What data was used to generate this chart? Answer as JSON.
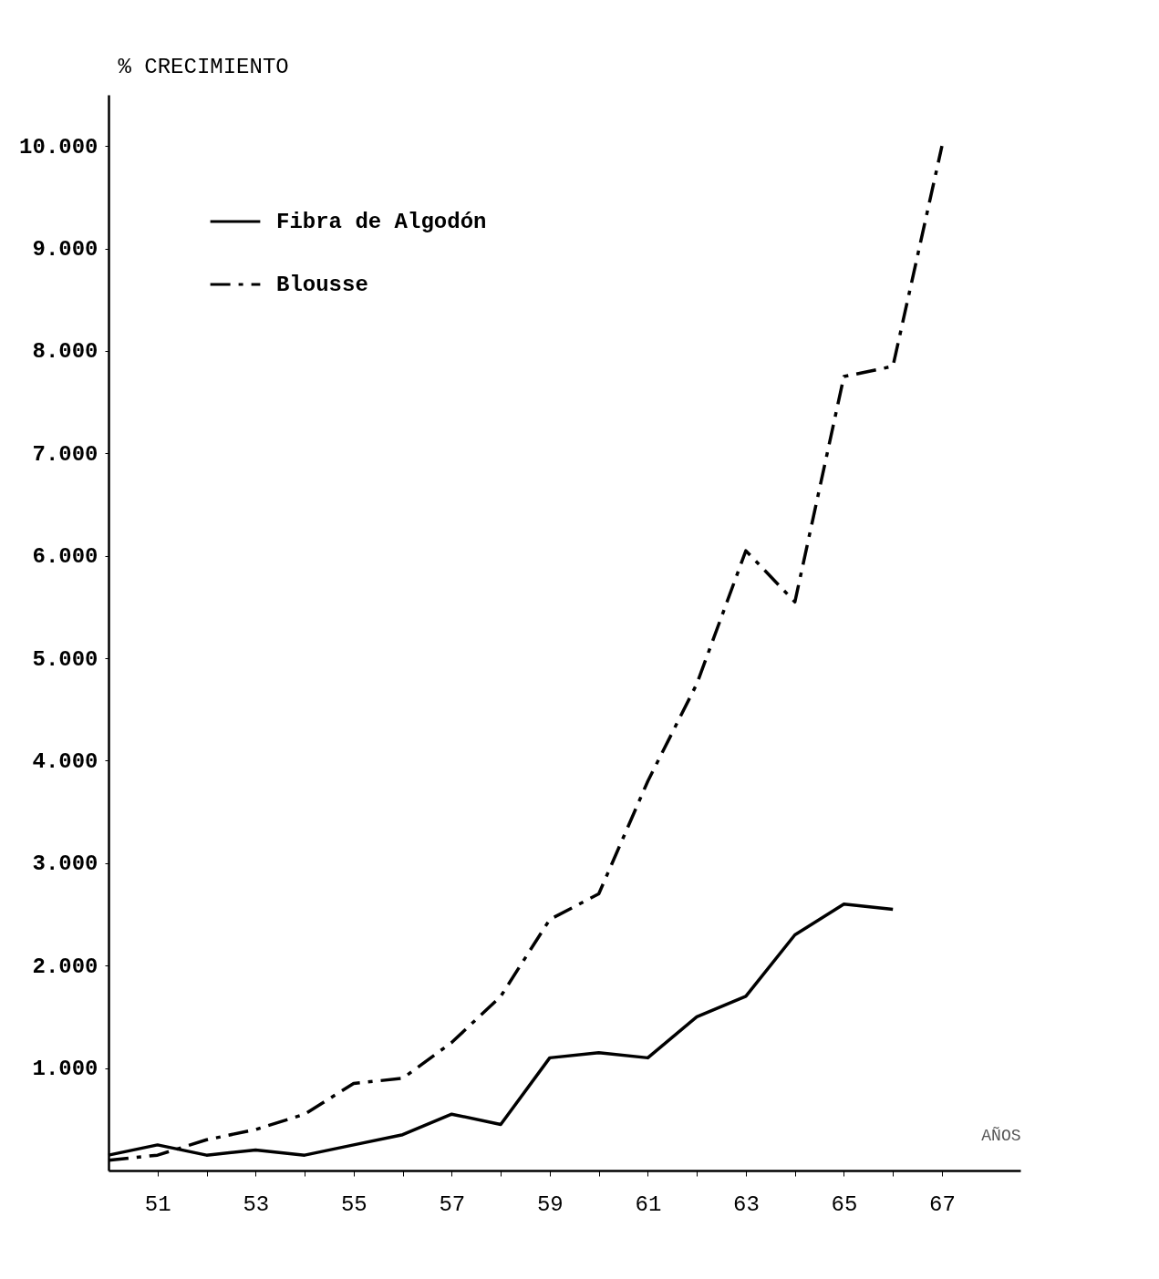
{
  "chart_data": {
    "type": "line",
    "ylabel": "% CRECIMIENTO",
    "xlabel": "AÑOS",
    "x": [
      1950,
      1951,
      1952,
      1953,
      1954,
      1955,
      1956,
      1957,
      1958,
      1959,
      1960,
      1961,
      1962,
      1963,
      1964,
      1965,
      1966,
      1967
    ],
    "series": [
      {
        "name": "Fibra de Algodón",
        "color": "#000000",
        "line_style": "solid",
        "values": [
          150,
          250,
          150,
          200,
          150,
          250,
          350,
          550,
          450,
          1100,
          1150,
          1100,
          1500,
          1700,
          2300,
          2600,
          2550,
          null
        ]
      },
      {
        "name": "Blousse",
        "color": "#000000",
        "line_style": "dashed",
        "values": [
          100,
          150,
          300,
          400,
          550,
          850,
          900,
          1250,
          1700,
          2450,
          2700,
          3800,
          4750,
          6050,
          5550,
          7750,
          7850,
          10000
        ]
      }
    ],
    "xlim": [
      1950,
      1968.6
    ],
    "xticks": [
      {
        "value": 1951,
        "label": "51"
      },
      {
        "value": 1952,
        "label": null
      },
      {
        "value": 1953,
        "label": "53"
      },
      {
        "value": 1954,
        "label": null
      },
      {
        "value": 1955,
        "label": "55"
      },
      {
        "value": 1956,
        "label": null
      },
      {
        "value": 1957,
        "label": "57"
      },
      {
        "value": 1958,
        "label": null
      },
      {
        "value": 1959,
        "label": "59"
      },
      {
        "value": 1960,
        "label": null
      },
      {
        "value": 1961,
        "label": "61"
      },
      {
        "value": 1962,
        "label": null
      },
      {
        "value": 1963,
        "label": "63"
      },
      {
        "value": 1964,
        "label": null
      },
      {
        "value": 1965,
        "label": "65"
      },
      {
        "value": 1966,
        "label": null
      },
      {
        "value": 1967,
        "label": "67"
      }
    ],
    "ylim": [
      0,
      10500
    ],
    "yticks": [
      {
        "value": 1000,
        "label": "1.000"
      },
      {
        "value": 2000,
        "label": "2.000"
      },
      {
        "value": 3000,
        "label": "3.000"
      },
      {
        "value": 4000,
        "label": "4.000"
      },
      {
        "value": 5000,
        "label": "5.000"
      },
      {
        "value": 6000,
        "label": "6.000"
      },
      {
        "value": 7000,
        "label": "7.000"
      },
      {
        "value": 8000,
        "label": "8.000"
      },
      {
        "value": 9000,
        "label": "9.000"
      },
      {
        "value": 10000,
        "label": "10.000"
      }
    ],
    "grid": false,
    "legend": "top left",
    "marker": "none"
  }
}
